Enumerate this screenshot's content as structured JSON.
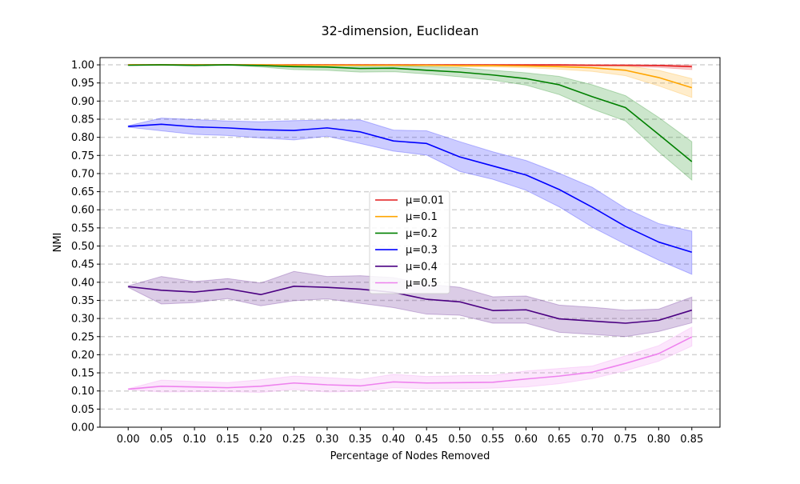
{
  "chart_data": {
    "type": "line",
    "title": "32-dimension, Euclidean",
    "xlabel": "Percentage of Nodes Removed",
    "ylabel": "NMI",
    "x": [
      0.0,
      0.05,
      0.1,
      0.15,
      0.2,
      0.25,
      0.3,
      0.35,
      0.4,
      0.45,
      0.5,
      0.55,
      0.6,
      0.65,
      0.7,
      0.75,
      0.8,
      0.85
    ],
    "xticks": [
      "0.00",
      "0.05",
      "0.10",
      "0.15",
      "0.20",
      "0.25",
      "0.30",
      "0.35",
      "0.40",
      "0.45",
      "0.50",
      "0.55",
      "0.60",
      "0.65",
      "0.70",
      "0.75",
      "0.80",
      "0.85"
    ],
    "yticks": [
      "0.00",
      "0.05",
      "0.10",
      "0.15",
      "0.20",
      "0.25",
      "0.30",
      "0.35",
      "0.40",
      "0.45",
      "0.50",
      "0.55",
      "0.60",
      "0.65",
      "0.70",
      "0.75",
      "0.80",
      "0.85",
      "0.90",
      "0.95",
      "1.00"
    ],
    "xlim": [
      -0.0425,
      0.8925
    ],
    "ylim": [
      0.0,
      1.02
    ],
    "grid": "horizontal dashed",
    "legend_position": "center",
    "series": [
      {
        "name": "μ=0.01",
        "color": "#e41a1c",
        "values": [
          1.0,
          1.0,
          1.0,
          1.0,
          1.0,
          1.0,
          1.0,
          1.0,
          1.0,
          1.0,
          1.0,
          1.0,
          1.0,
          1.0,
          0.999,
          0.999,
          0.998,
          0.995
        ],
        "lower": [
          0.999,
          0.999,
          0.999,
          0.999,
          0.999,
          0.999,
          0.999,
          0.999,
          0.999,
          0.999,
          0.999,
          0.999,
          0.999,
          0.998,
          0.997,
          0.996,
          0.993,
          0.987
        ],
        "upper": [
          1.0,
          1.0,
          1.0,
          1.0,
          1.0,
          1.0,
          1.0,
          1.0,
          1.0,
          1.0,
          1.0,
          1.0,
          1.0,
          1.0,
          1.0,
          1.0,
          1.0,
          1.0
        ]
      },
      {
        "name": "μ=0.1",
        "color": "#ffa500",
        "values": [
          1.0,
          1.0,
          1.0,
          1.0,
          1.0,
          0.999,
          0.999,
          0.999,
          0.999,
          0.999,
          0.998,
          0.998,
          0.997,
          0.995,
          0.992,
          0.985,
          0.965,
          0.937
        ],
        "lower": [
          0.999,
          0.999,
          0.999,
          0.999,
          0.999,
          0.997,
          0.997,
          0.997,
          0.997,
          0.996,
          0.995,
          0.994,
          0.992,
          0.988,
          0.982,
          0.97,
          0.942,
          0.91
        ],
        "upper": [
          1.0,
          1.0,
          1.0,
          1.0,
          1.0,
          1.0,
          1.0,
          1.0,
          1.0,
          1.0,
          1.0,
          1.0,
          1.0,
          1.0,
          1.0,
          0.998,
          0.985,
          0.962
        ]
      },
      {
        "name": "μ=0.2",
        "color": "#008000",
        "values": [
          0.999,
          1.0,
          0.999,
          1.0,
          0.998,
          0.995,
          0.994,
          0.99,
          0.991,
          0.985,
          0.98,
          0.972,
          0.962,
          0.945,
          0.912,
          0.882,
          0.808,
          0.733
        ],
        "lower": [
          0.998,
          0.999,
          0.996,
          0.999,
          0.994,
          0.987,
          0.985,
          0.98,
          0.981,
          0.975,
          0.967,
          0.958,
          0.944,
          0.918,
          0.878,
          0.845,
          0.76,
          0.682
        ],
        "upper": [
          1.0,
          1.0,
          1.0,
          1.0,
          1.0,
          1.0,
          1.0,
          0.998,
          0.999,
          0.995,
          0.992,
          0.985,
          0.978,
          0.968,
          0.945,
          0.915,
          0.855,
          0.788
        ]
      },
      {
        "name": "μ=0.3",
        "color": "#0000ff",
        "values": [
          0.83,
          0.836,
          0.829,
          0.826,
          0.821,
          0.819,
          0.826,
          0.815,
          0.79,
          0.783,
          0.746,
          0.721,
          0.696,
          0.656,
          0.607,
          0.554,
          0.511,
          0.483
        ],
        "lower": [
          0.828,
          0.818,
          0.808,
          0.805,
          0.798,
          0.793,
          0.803,
          0.783,
          0.762,
          0.751,
          0.706,
          0.684,
          0.654,
          0.608,
          0.552,
          0.505,
          0.461,
          0.422
        ],
        "upper": [
          0.832,
          0.853,
          0.849,
          0.845,
          0.843,
          0.846,
          0.848,
          0.848,
          0.82,
          0.818,
          0.788,
          0.76,
          0.736,
          0.701,
          0.662,
          0.604,
          0.562,
          0.541
        ]
      },
      {
        "name": "μ=0.4",
        "color": "#4b0082",
        "values": [
          0.388,
          0.378,
          0.373,
          0.382,
          0.366,
          0.389,
          0.386,
          0.381,
          0.372,
          0.353,
          0.346,
          0.322,
          0.324,
          0.299,
          0.293,
          0.287,
          0.295,
          0.323
        ],
        "lower": [
          0.386,
          0.34,
          0.344,
          0.355,
          0.335,
          0.349,
          0.354,
          0.342,
          0.33,
          0.312,
          0.309,
          0.287,
          0.287,
          0.262,
          0.256,
          0.25,
          0.264,
          0.288
        ],
        "upper": [
          0.39,
          0.416,
          0.402,
          0.41,
          0.398,
          0.43,
          0.416,
          0.418,
          0.413,
          0.395,
          0.386,
          0.36,
          0.362,
          0.337,
          0.331,
          0.323,
          0.326,
          0.359
        ]
      },
      {
        "name": "μ=0.5",
        "color": "#ee82ee",
        "values": [
          0.105,
          0.113,
          0.111,
          0.109,
          0.113,
          0.122,
          0.117,
          0.114,
          0.125,
          0.122,
          0.123,
          0.124,
          0.133,
          0.141,
          0.152,
          0.176,
          0.203,
          0.249
        ],
        "lower": [
          0.104,
          0.097,
          0.098,
          0.098,
          0.096,
          0.104,
          0.097,
          0.099,
          0.109,
          0.106,
          0.106,
          0.108,
          0.111,
          0.12,
          0.134,
          0.156,
          0.182,
          0.224
        ],
        "upper": [
          0.106,
          0.13,
          0.126,
          0.123,
          0.131,
          0.141,
          0.137,
          0.132,
          0.146,
          0.14,
          0.142,
          0.143,
          0.155,
          0.162,
          0.169,
          0.197,
          0.225,
          0.276
        ]
      }
    ]
  }
}
